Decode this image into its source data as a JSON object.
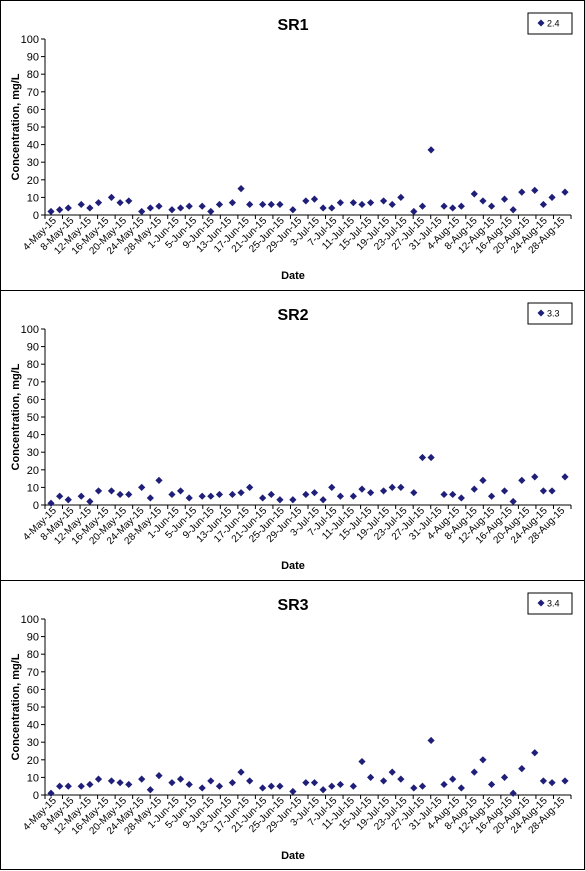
{
  "chart_data": [
    {
      "type": "scatter",
      "title": "SR1",
      "xlabel": "Date",
      "ylabel": "Concentration, mg/L",
      "ylim": [
        0,
        100
      ],
      "yticks": [
        0,
        10,
        20,
        30,
        40,
        50,
        60,
        70,
        80,
        90,
        100
      ],
      "xlim": [
        "2015-05-04",
        "2015-08-31"
      ],
      "xtick_labels": [
        "4-May-15",
        "8-May-15",
        "12-May-15",
        "16-May-15",
        "20-May-15",
        "24-May-15",
        "28-May-15",
        "1-Jun-15",
        "5-Jun-15",
        "9-Jun-15",
        "13-Jun-15",
        "17-Jun-15",
        "21-Jun-15",
        "25-Jun-15",
        "29-Jun-15",
        "3-Jul-15",
        "7-Jul-15",
        "11-Jul-15",
        "15-Jul-15",
        "19-Jul-15",
        "23-Jul-15",
        "27-Jul-15",
        "31-Jul-15",
        "4-Aug-15",
        "8-Aug-15",
        "12-Aug-15",
        "16-Aug-15",
        "20-Aug-15",
        "24-Aug-15",
        "28-Aug-15"
      ],
      "legend": {
        "entries": [
          "2.4"
        ],
        "position": "top-right"
      },
      "marker_color": "#1F1F7A",
      "series": [
        {
          "name": "2.4",
          "points": [
            [
              "2015-05-04",
              2
            ],
            [
              "2015-05-06",
              3
            ],
            [
              "2015-05-08",
              4
            ],
            [
              "2015-05-11",
              6
            ],
            [
              "2015-05-13",
              4
            ],
            [
              "2015-05-15",
              7
            ],
            [
              "2015-05-18",
              10
            ],
            [
              "2015-05-20",
              7
            ],
            [
              "2015-05-22",
              8
            ],
            [
              "2015-05-25",
              2
            ],
            [
              "2015-05-27",
              4
            ],
            [
              "2015-05-29",
              5
            ],
            [
              "2015-06-01",
              3
            ],
            [
              "2015-06-03",
              4
            ],
            [
              "2015-06-05",
              5
            ],
            [
              "2015-06-08",
              5
            ],
            [
              "2015-06-10",
              2
            ],
            [
              "2015-06-12",
              6
            ],
            [
              "2015-06-15",
              7
            ],
            [
              "2015-06-17",
              15
            ],
            [
              "2015-06-19",
              6
            ],
            [
              "2015-06-22",
              6
            ],
            [
              "2015-06-24",
              6
            ],
            [
              "2015-06-26",
              6
            ],
            [
              "2015-06-29",
              3
            ],
            [
              "2015-07-02",
              8
            ],
            [
              "2015-07-04",
              9
            ],
            [
              "2015-07-06",
              4
            ],
            [
              "2015-07-08",
              4
            ],
            [
              "2015-07-10",
              7
            ],
            [
              "2015-07-13",
              7
            ],
            [
              "2015-07-15",
              6
            ],
            [
              "2015-07-17",
              7
            ],
            [
              "2015-07-20",
              8
            ],
            [
              "2015-07-22",
              6
            ],
            [
              "2015-07-24",
              10
            ],
            [
              "2015-07-27",
              2
            ],
            [
              "2015-07-29",
              5
            ],
            [
              "2015-07-31",
              37
            ],
            [
              "2015-08-03",
              5
            ],
            [
              "2015-08-05",
              4
            ],
            [
              "2015-08-07",
              5
            ],
            [
              "2015-08-10",
              12
            ],
            [
              "2015-08-12",
              8
            ],
            [
              "2015-08-14",
              5
            ],
            [
              "2015-08-17",
              9
            ],
            [
              "2015-08-19",
              3
            ],
            [
              "2015-08-21",
              13
            ],
            [
              "2015-08-24",
              14
            ],
            [
              "2015-08-26",
              6
            ],
            [
              "2015-08-28",
              10
            ],
            [
              "2015-08-31",
              13
            ]
          ]
        }
      ]
    },
    {
      "type": "scatter",
      "title": "SR2",
      "xlabel": "Date",
      "ylabel": "Concentration, mg/L",
      "ylim": [
        0,
        100
      ],
      "yticks": [
        0,
        10,
        20,
        30,
        40,
        50,
        60,
        70,
        80,
        90,
        100
      ],
      "xlim": [
        "2015-05-04",
        "2015-08-31"
      ],
      "xtick_labels": [
        "4-May-15",
        "8-May-15",
        "12-May-15",
        "16-May-15",
        "20-May-15",
        "24-May-15",
        "28-May-15",
        "1-Jun-15",
        "5-Jun-15",
        "9-Jun-15",
        "13-Jun-15",
        "17-Jun-15",
        "21-Jun-15",
        "25-Jun-15",
        "29-Jun-15",
        "3-Jul-15",
        "7-Jul-15",
        "11-Jul-15",
        "15-Jul-15",
        "19-Jul-15",
        "23-Jul-15",
        "27-Jul-15",
        "31-Jul-15",
        "4-Aug-15",
        "8-Aug-15",
        "12-Aug-15",
        "16-Aug-15",
        "20-Aug-15",
        "24-Aug-15",
        "28-Aug-15"
      ],
      "legend": {
        "entries": [
          "3.3"
        ],
        "position": "top-right"
      },
      "marker_color": "#1F1F7A",
      "series": [
        {
          "name": "3.3",
          "points": [
            [
              "2015-05-04",
              1
            ],
            [
              "2015-05-06",
              5
            ],
            [
              "2015-05-08",
              3
            ],
            [
              "2015-05-11",
              5
            ],
            [
              "2015-05-13",
              2
            ],
            [
              "2015-05-15",
              8
            ],
            [
              "2015-05-18",
              8
            ],
            [
              "2015-05-20",
              6
            ],
            [
              "2015-05-22",
              6
            ],
            [
              "2015-05-25",
              10
            ],
            [
              "2015-05-27",
              4
            ],
            [
              "2015-05-29",
              14
            ],
            [
              "2015-06-01",
              6
            ],
            [
              "2015-06-03",
              8
            ],
            [
              "2015-06-05",
              4
            ],
            [
              "2015-06-08",
              5
            ],
            [
              "2015-06-10",
              5
            ],
            [
              "2015-06-12",
              6
            ],
            [
              "2015-06-15",
              6
            ],
            [
              "2015-06-17",
              7
            ],
            [
              "2015-06-19",
              10
            ],
            [
              "2015-06-22",
              4
            ],
            [
              "2015-06-24",
              6
            ],
            [
              "2015-06-26",
              3
            ],
            [
              "2015-06-29",
              3
            ],
            [
              "2015-07-02",
              6
            ],
            [
              "2015-07-04",
              7
            ],
            [
              "2015-07-06",
              3
            ],
            [
              "2015-07-08",
              10
            ],
            [
              "2015-07-10",
              5
            ],
            [
              "2015-07-13",
              5
            ],
            [
              "2015-07-15",
              9
            ],
            [
              "2015-07-17",
              7
            ],
            [
              "2015-07-20",
              8
            ],
            [
              "2015-07-22",
              10
            ],
            [
              "2015-07-24",
              10
            ],
            [
              "2015-07-27",
              7
            ],
            [
              "2015-07-29",
              27
            ],
            [
              "2015-07-31",
              27
            ],
            [
              "2015-08-03",
              6
            ],
            [
              "2015-08-05",
              6
            ],
            [
              "2015-08-07",
              4
            ],
            [
              "2015-08-10",
              9
            ],
            [
              "2015-08-12",
              14
            ],
            [
              "2015-08-14",
              5
            ],
            [
              "2015-08-17",
              8
            ],
            [
              "2015-08-19",
              2
            ],
            [
              "2015-08-21",
              14
            ],
            [
              "2015-08-24",
              16
            ],
            [
              "2015-08-26",
              8
            ],
            [
              "2015-08-28",
              8
            ],
            [
              "2015-08-31",
              16
            ]
          ]
        }
      ]
    },
    {
      "type": "scatter",
      "title": "SR3",
      "xlabel": "Date",
      "ylabel": "Concentration, mg/L",
      "ylim": [
        0,
        100
      ],
      "yticks": [
        0,
        10,
        20,
        30,
        40,
        50,
        60,
        70,
        80,
        90,
        100
      ],
      "xlim": [
        "2015-05-04",
        "2015-08-31"
      ],
      "xtick_labels": [
        "4-May-15",
        "8-May-15",
        "12-May-15",
        "16-May-15",
        "20-May-15",
        "24-May-15",
        "28-May-15",
        "1-Jun-15",
        "5-Jun-15",
        "9-Jun-15",
        "13-Jun-15",
        "17-Jun-15",
        "21-Jun-15",
        "25-Jun-15",
        "29-Jun-15",
        "3-Jul-15",
        "7-Jul-15",
        "11-Jul-15",
        "15-Jul-15",
        "19-Jul-15",
        "23-Jul-15",
        "27-Jul-15",
        "31-Jul-15",
        "4-Aug-15",
        "8-Aug-15",
        "12-Aug-15",
        "16-Aug-15",
        "20-Aug-15",
        "24-Aug-15",
        "28-Aug-15"
      ],
      "legend": {
        "entries": [
          "3.4"
        ],
        "position": "top-right"
      },
      "marker_color": "#1F1F7A",
      "series": [
        {
          "name": "3.4",
          "points": [
            [
              "2015-05-04",
              1
            ],
            [
              "2015-05-06",
              5
            ],
            [
              "2015-05-08",
              5
            ],
            [
              "2015-05-11",
              5
            ],
            [
              "2015-05-13",
              6
            ],
            [
              "2015-05-15",
              9
            ],
            [
              "2015-05-18",
              8
            ],
            [
              "2015-05-20",
              7
            ],
            [
              "2015-05-22",
              6
            ],
            [
              "2015-05-25",
              9
            ],
            [
              "2015-05-27",
              3
            ],
            [
              "2015-05-29",
              11
            ],
            [
              "2015-06-01",
              7
            ],
            [
              "2015-06-03",
              9
            ],
            [
              "2015-06-05",
              6
            ],
            [
              "2015-06-08",
              4
            ],
            [
              "2015-06-10",
              8
            ],
            [
              "2015-06-12",
              5
            ],
            [
              "2015-06-15",
              7
            ],
            [
              "2015-06-17",
              13
            ],
            [
              "2015-06-19",
              8
            ],
            [
              "2015-06-22",
              4
            ],
            [
              "2015-06-24",
              5
            ],
            [
              "2015-06-26",
              5
            ],
            [
              "2015-06-29",
              2
            ],
            [
              "2015-07-02",
              7
            ],
            [
              "2015-07-04",
              7
            ],
            [
              "2015-07-06",
              3
            ],
            [
              "2015-07-08",
              5
            ],
            [
              "2015-07-10",
              6
            ],
            [
              "2015-07-13",
              5
            ],
            [
              "2015-07-15",
              19
            ],
            [
              "2015-07-17",
              10
            ],
            [
              "2015-07-20",
              8
            ],
            [
              "2015-07-22",
              13
            ],
            [
              "2015-07-24",
              9
            ],
            [
              "2015-07-27",
              4
            ],
            [
              "2015-07-29",
              5
            ],
            [
              "2015-07-31",
              31
            ],
            [
              "2015-08-03",
              6
            ],
            [
              "2015-08-05",
              9
            ],
            [
              "2015-08-07",
              4
            ],
            [
              "2015-08-10",
              13
            ],
            [
              "2015-08-12",
              20
            ],
            [
              "2015-08-14",
              6
            ],
            [
              "2015-08-17",
              10
            ],
            [
              "2015-08-19",
              1
            ],
            [
              "2015-08-21",
              15
            ],
            [
              "2015-08-24",
              24
            ],
            [
              "2015-08-26",
              8
            ],
            [
              "2015-08-28",
              7
            ],
            [
              "2015-08-31",
              8
            ]
          ]
        }
      ]
    }
  ]
}
